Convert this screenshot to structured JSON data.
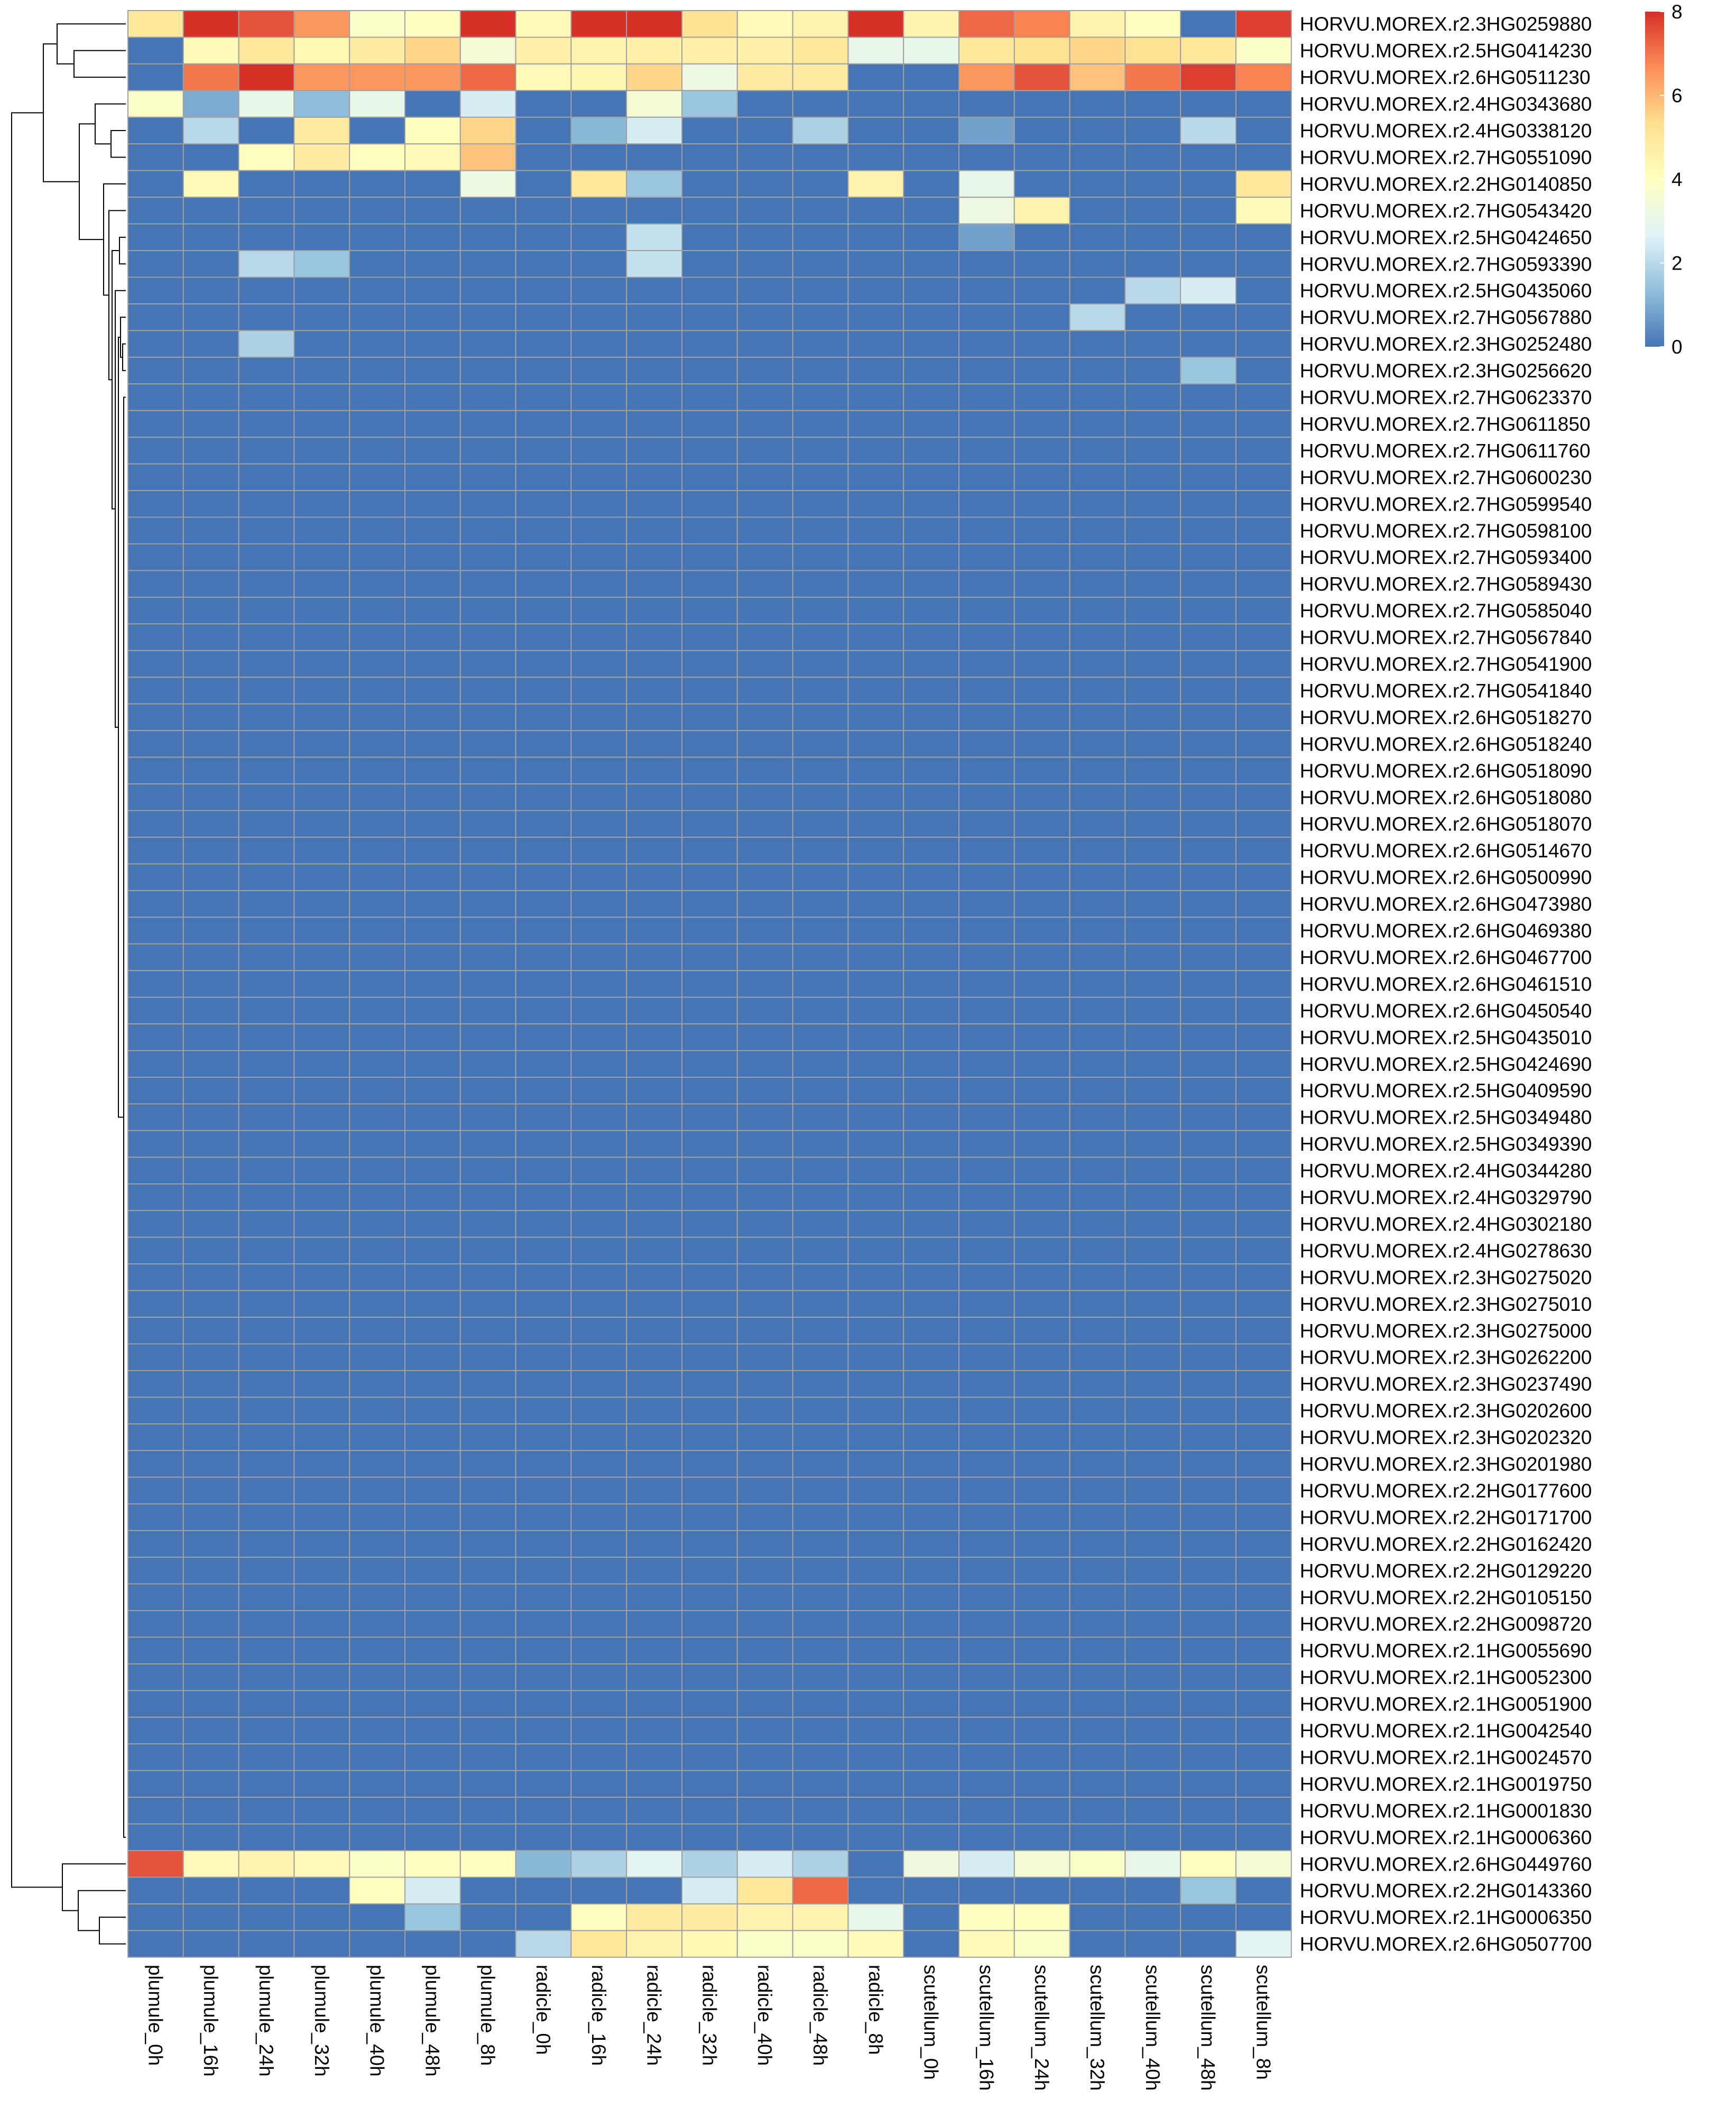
{
  "chart_data": {
    "type": "heatmap",
    "title": "",
    "xlabel": "",
    "ylabel": "",
    "columns": [
      "plumule_0h",
      "plumule_16h",
      "plumule_24h",
      "plumule_32h",
      "plumule_40h",
      "plumule_48h",
      "plumule_8h",
      "radicle_0h",
      "radicle_16h",
      "radicle_24h",
      "radicle_32h",
      "radicle_40h",
      "radicle_48h",
      "radicle_8h",
      "scutellum_0h",
      "scutellum_16h",
      "scutellum_24h",
      "scutellum_32h",
      "scutellum_40h",
      "scutellum_48h",
      "scutellum_8h"
    ],
    "rows": [
      "HORVU.MOREX.r2.3HG0259880",
      "HORVU.MOREX.r2.5HG0414230",
      "HORVU.MOREX.r2.6HG0511230",
      "HORVU.MOREX.r2.4HG0343680",
      "HORVU.MOREX.r2.4HG0338120",
      "HORVU.MOREX.r2.7HG0551090",
      "HORVU.MOREX.r2.2HG0140850",
      "HORVU.MOREX.r2.7HG0543420",
      "HORVU.MOREX.r2.5HG0424650",
      "HORVU.MOREX.r2.7HG0593390",
      "HORVU.MOREX.r2.5HG0435060",
      "HORVU.MOREX.r2.7HG0567880",
      "HORVU.MOREX.r2.3HG0252480",
      "HORVU.MOREX.r2.3HG0256620",
      "HORVU.MOREX.r2.7HG0623370",
      "HORVU.MOREX.r2.7HG0611850",
      "HORVU.MOREX.r2.7HG0611760",
      "HORVU.MOREX.r2.7HG0600230",
      "HORVU.MOREX.r2.7HG0599540",
      "HORVU.MOREX.r2.7HG0598100",
      "HORVU.MOREX.r2.7HG0593400",
      "HORVU.MOREX.r2.7HG0589430",
      "HORVU.MOREX.r2.7HG0585040",
      "HORVU.MOREX.r2.7HG0567840",
      "HORVU.MOREX.r2.7HG0541900",
      "HORVU.MOREX.r2.7HG0541840",
      "HORVU.MOREX.r2.6HG0518270",
      "HORVU.MOREX.r2.6HG0518240",
      "HORVU.MOREX.r2.6HG0518090",
      "HORVU.MOREX.r2.6HG0518080",
      "HORVU.MOREX.r2.6HG0518070",
      "HORVU.MOREX.r2.6HG0514670",
      "HORVU.MOREX.r2.6HG0500990",
      "HORVU.MOREX.r2.6HG0473980",
      "HORVU.MOREX.r2.6HG0469380",
      "HORVU.MOREX.r2.6HG0467700",
      "HORVU.MOREX.r2.6HG0461510",
      "HORVU.MOREX.r2.6HG0450540",
      "HORVU.MOREX.r2.5HG0435010",
      "HORVU.MOREX.r2.5HG0424690",
      "HORVU.MOREX.r2.5HG0409590",
      "HORVU.MOREX.r2.5HG0349480",
      "HORVU.MOREX.r2.5HG0349390",
      "HORVU.MOREX.r2.4HG0344280",
      "HORVU.MOREX.r2.4HG0329790",
      "HORVU.MOREX.r2.4HG0302180",
      "HORVU.MOREX.r2.4HG0278630",
      "HORVU.MOREX.r2.3HG0275020",
      "HORVU.MOREX.r2.3HG0275010",
      "HORVU.MOREX.r2.3HG0275000",
      "HORVU.MOREX.r2.3HG0262200",
      "HORVU.MOREX.r2.3HG0237490",
      "HORVU.MOREX.r2.3HG0202600",
      "HORVU.MOREX.r2.3HG0202320",
      "HORVU.MOREX.r2.3HG0201980",
      "HORVU.MOREX.r2.2HG0177600",
      "HORVU.MOREX.r2.2HG0171700",
      "HORVU.MOREX.r2.2HG0162420",
      "HORVU.MOREX.r2.2HG0129220",
      "HORVU.MOREX.r2.2HG0105150",
      "HORVU.MOREX.r2.2HG0098720",
      "HORVU.MOREX.r2.1HG0055690",
      "HORVU.MOREX.r2.1HG0052300",
      "HORVU.MOREX.r2.1HG0051900",
      "HORVU.MOREX.r2.1HG0042540",
      "HORVU.MOREX.r2.1HG0024570",
      "HORVU.MOREX.r2.1HG0019750",
      "HORVU.MOREX.r2.1HG0001830",
      "HORVU.MOREX.r2.1HG0006360",
      "HORVU.MOREX.r2.6HG0449760",
      "HORVU.MOREX.r2.2HG0143360",
      "HORVU.MOREX.r2.1HG0006350",
      "HORVU.MOREX.r2.6HG0507700"
    ],
    "nonzero_values": [
      [
        5.0,
        8.0,
        7.5,
        6.5,
        3.8,
        4.0,
        8.0,
        4.2,
        8.0,
        8.0,
        5.2,
        4.2,
        4.5,
        8.0,
        4.5,
        7.2,
        6.8,
        4.5,
        4.0,
        0,
        7.8
      ],
      [
        0,
        4.2,
        5.0,
        4.3,
        4.8,
        5.5,
        3.5,
        4.6,
        4.5,
        4.6,
        4.6,
        4.6,
        5.0,
        3.0,
        3.0,
        5.0,
        5.3,
        5.5,
        5.3,
        5.0,
        3.8
      ],
      [
        0,
        7.0,
        8.0,
        6.5,
        6.5,
        6.5,
        7.2,
        4.2,
        4.4,
        5.5,
        3.2,
        4.8,
        4.8,
        0,
        0,
        6.5,
        7.5,
        5.8,
        7.0,
        7.8,
        6.8
      ],
      [
        3.8,
        1.0,
        3.0,
        1.3,
        3.0,
        0,
        2.5,
        0,
        0,
        3.5,
        1.5,
        0,
        0,
        0,
        0,
        0,
        0,
        0,
        0,
        0,
        0
      ],
      [
        0,
        2.0,
        0,
        4.8,
        0,
        4.0,
        5.5,
        0,
        1.2,
        2.5,
        0,
        0,
        1.8,
        0,
        0,
        0.8,
        0,
        0,
        0,
        2.0,
        0
      ],
      [
        0,
        0,
        4.0,
        4.8,
        4.0,
        4.2,
        5.8,
        0,
        0,
        0,
        0,
        0,
        0,
        0,
        0,
        0,
        0,
        0,
        0,
        0,
        0
      ],
      [
        0,
        4.2,
        0,
        0,
        0,
        0,
        3.2,
        0,
        5.0,
        1.5,
        0,
        0,
        0,
        4.5,
        0,
        3.0,
        0,
        0,
        0,
        0,
        5.0
      ],
      [
        0,
        0,
        0,
        0,
        0,
        0,
        0,
        0,
        0,
        0,
        0,
        0,
        0,
        0,
        0,
        3.2,
        4.5,
        0,
        0,
        0,
        4.2
      ],
      [
        0,
        0,
        0,
        0,
        0,
        0,
        0,
        0,
        0,
        2.2,
        0,
        0,
        0,
        0,
        0,
        0.8,
        0,
        0,
        0,
        0,
        0
      ],
      [
        0,
        0,
        2.0,
        1.5,
        0,
        0,
        0,
        0,
        0,
        2.2,
        0,
        0,
        0,
        0,
        0,
        0,
        0,
        0,
        0,
        0,
        0
      ],
      [
        0,
        0,
        0,
        0,
        0,
        0,
        0,
        0,
        0,
        0,
        0,
        0,
        0,
        0,
        0,
        0,
        0,
        0,
        2.0,
        2.5,
        0
      ],
      [
        0,
        0,
        0,
        0,
        0,
        0,
        0,
        0,
        0,
        0,
        0,
        0,
        0,
        0,
        0,
        0,
        0,
        2.0,
        0,
        0,
        0
      ],
      [
        0,
        0,
        1.8,
        0,
        0,
        0,
        0,
        0,
        0,
        0,
        0,
        0,
        0,
        0,
        0,
        0,
        0,
        0,
        0,
        0,
        0
      ],
      [
        0,
        0,
        0,
        0,
        0,
        0,
        0,
        0,
        0,
        0,
        0,
        0,
        0,
        0,
        0,
        0,
        0,
        0,
        0,
        1.5,
        0
      ],
      [
        7.5,
        4.2,
        4.5,
        4.2,
        3.8,
        4.0,
        4.0,
        1.2,
        1.8,
        2.8,
        1.8,
        2.5,
        1.8,
        0,
        3.3,
        2.5,
        3.5,
        3.8,
        3.0,
        4.0,
        3.5
      ],
      [
        0,
        0,
        0,
        0,
        4.0,
        2.5,
        0,
        0,
        0,
        0,
        2.5,
        5.0,
        7.2,
        0,
        0,
        0,
        0,
        0,
        0,
        1.5,
        0
      ],
      [
        0,
        0,
        0,
        0,
        0,
        1.5,
        0,
        0,
        4.0,
        4.8,
        4.8,
        4.5,
        4.5,
        3.0,
        0,
        4.0,
        4.0,
        0,
        0,
        0,
        0
      ],
      [
        0,
        0,
        0,
        0,
        0,
        0,
        0,
        2.0,
        5.0,
        4.5,
        4.3,
        3.8,
        3.8,
        4.2,
        0,
        4.2,
        3.8,
        0,
        0,
        0,
        2.8
      ]
    ],
    "nonzero_row_index": [
      0,
      1,
      2,
      3,
      4,
      5,
      6,
      7,
      8,
      9,
      10,
      11,
      12,
      13,
      69,
      70,
      71,
      72
    ],
    "default_value": 0,
    "color_scale": {
      "min": 0,
      "max": 8,
      "stops": [
        "#4575b4",
        "#91bfdb",
        "#e0f3f8",
        "#ffffbf",
        "#fee090",
        "#fc8d59",
        "#d73027"
      ],
      "ticks": [
        "0",
        "2",
        "4",
        "6",
        "8"
      ]
    },
    "dendrogram": "rows"
  }
}
